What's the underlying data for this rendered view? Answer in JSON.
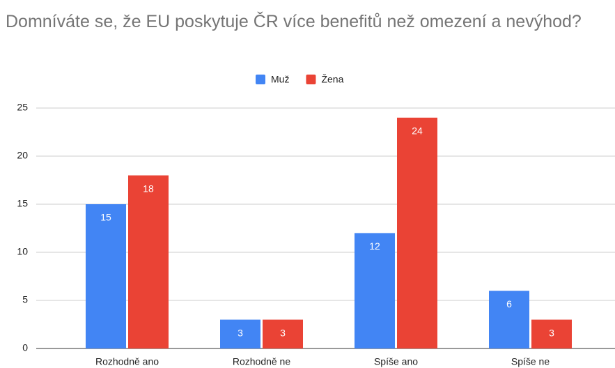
{
  "chart_data": {
    "type": "bar",
    "title": "Domníváte se, že EU poskytuje ČR více benefitů než omezení a nevýhod?",
    "categories": [
      "Rozhodně ano",
      "Rozhodně ne",
      "Spíše ano",
      "Spíše ne"
    ],
    "series": [
      {
        "name": "Muž",
        "color": "#4285f4",
        "values": [
          15,
          3,
          12,
          6
        ]
      },
      {
        "name": "Žena",
        "color": "#ea4335",
        "values": [
          18,
          3,
          24,
          3
        ]
      }
    ],
    "ylim": [
      0,
      25
    ],
    "yticks": [
      0,
      5,
      10,
      15,
      20,
      25
    ],
    "grid": true,
    "legend": "top"
  }
}
